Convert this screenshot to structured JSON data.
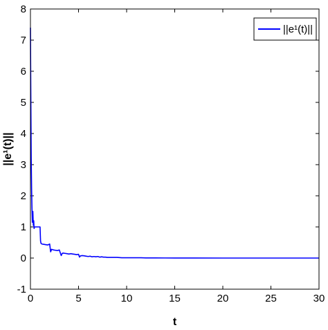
{
  "chart_data": {
    "type": "line",
    "xlabel": "t",
    "ylabel": "||e¹(t)||",
    "xlim": [
      0,
      30
    ],
    "ylim": [
      -1,
      8
    ],
    "x_ticks": [
      0,
      5,
      10,
      15,
      20,
      25,
      30
    ],
    "y_ticks": [
      -1,
      0,
      1,
      2,
      3,
      4,
      5,
      6,
      7,
      8
    ],
    "grid": false,
    "legend_position": "top-right",
    "series": [
      {
        "name": "||e¹(t)||",
        "color": "#0000ff",
        "x": [
          0,
          0.02,
          0.05,
          0.08,
          0.12,
          0.16,
          0.2,
          0.25,
          0.3,
          0.34,
          0.38,
          0.42,
          0.46,
          0.5,
          0.55,
          0.6,
          0.7,
          0.8,
          0.9,
          1.0,
          1.05,
          1.1,
          1.2,
          1.4,
          1.6,
          1.8,
          2.0,
          2.1,
          2.2,
          2.4,
          2.6,
          2.8,
          3.0,
          3.2,
          3.3,
          3.4,
          3.6,
          3.8,
          4.0,
          4.2,
          4.4,
          4.6,
          4.8,
          5.0,
          5.1,
          5.2,
          5.4,
          5.6,
          5.8,
          6.0,
          6.2,
          6.4,
          6.6,
          6.8,
          7.0,
          7.2,
          7.4,
          7.6,
          7.8,
          8.0,
          8.2,
          8.5,
          9.0,
          9.5,
          10.0,
          10.5,
          11.0,
          11.5,
          12.0,
          13.0,
          14.0,
          15.0,
          17.0,
          20.0,
          25.0,
          30.0
        ],
        "values": [
          7.4,
          6.2,
          4.6,
          3.2,
          2.2,
          1.6,
          1.15,
          1.5,
          1.05,
          1.2,
          0.95,
          1.0,
          1.0,
          1.0,
          1.0,
          1.0,
          1.0,
          1.0,
          1.0,
          1.0,
          0.55,
          0.47,
          0.45,
          0.44,
          0.43,
          0.42,
          0.45,
          0.2,
          0.28,
          0.26,
          0.25,
          0.24,
          0.26,
          0.08,
          0.15,
          0.16,
          0.15,
          0.14,
          0.13,
          0.14,
          0.13,
          0.12,
          0.11,
          0.12,
          0.03,
          0.07,
          0.08,
          0.07,
          0.06,
          0.05,
          0.06,
          0.04,
          0.05,
          0.04,
          0.05,
          0.03,
          0.04,
          0.03,
          0.03,
          0.02,
          0.02,
          0.02,
          0.02,
          0.01,
          0.01,
          0.01,
          0.01,
          0.01,
          0.005,
          0.005,
          0.003,
          0.002,
          0.001,
          0.0,
          0.0,
          0.0
        ]
      }
    ]
  }
}
